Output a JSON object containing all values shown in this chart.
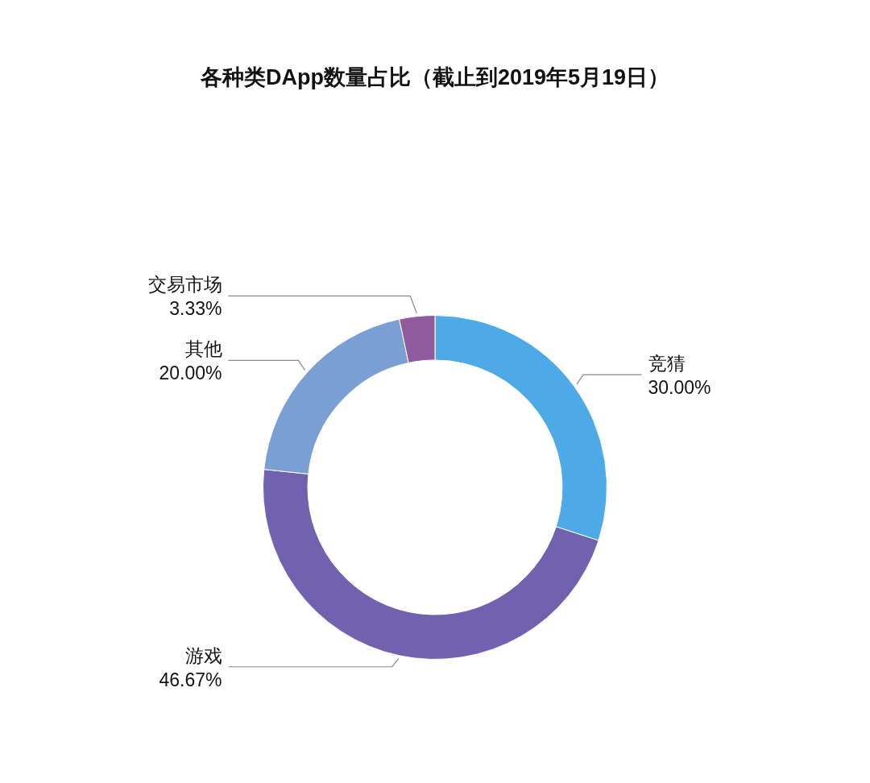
{
  "chart_data": {
    "type": "donut",
    "title": "各种类DApp数量占比（截止到2019年5月19日）",
    "categories": [
      "竞猜",
      "游戏",
      "其他",
      "交易市场"
    ],
    "values": [
      30,
      46.67,
      20,
      3.33
    ],
    "colors": [
      "#4eaae6",
      "#7162b0",
      "#7a9fd2",
      "#8f5a9e"
    ],
    "value_labels": [
      "30.00%",
      "46.67%",
      "20.00%",
      "3.33%"
    ]
  }
}
